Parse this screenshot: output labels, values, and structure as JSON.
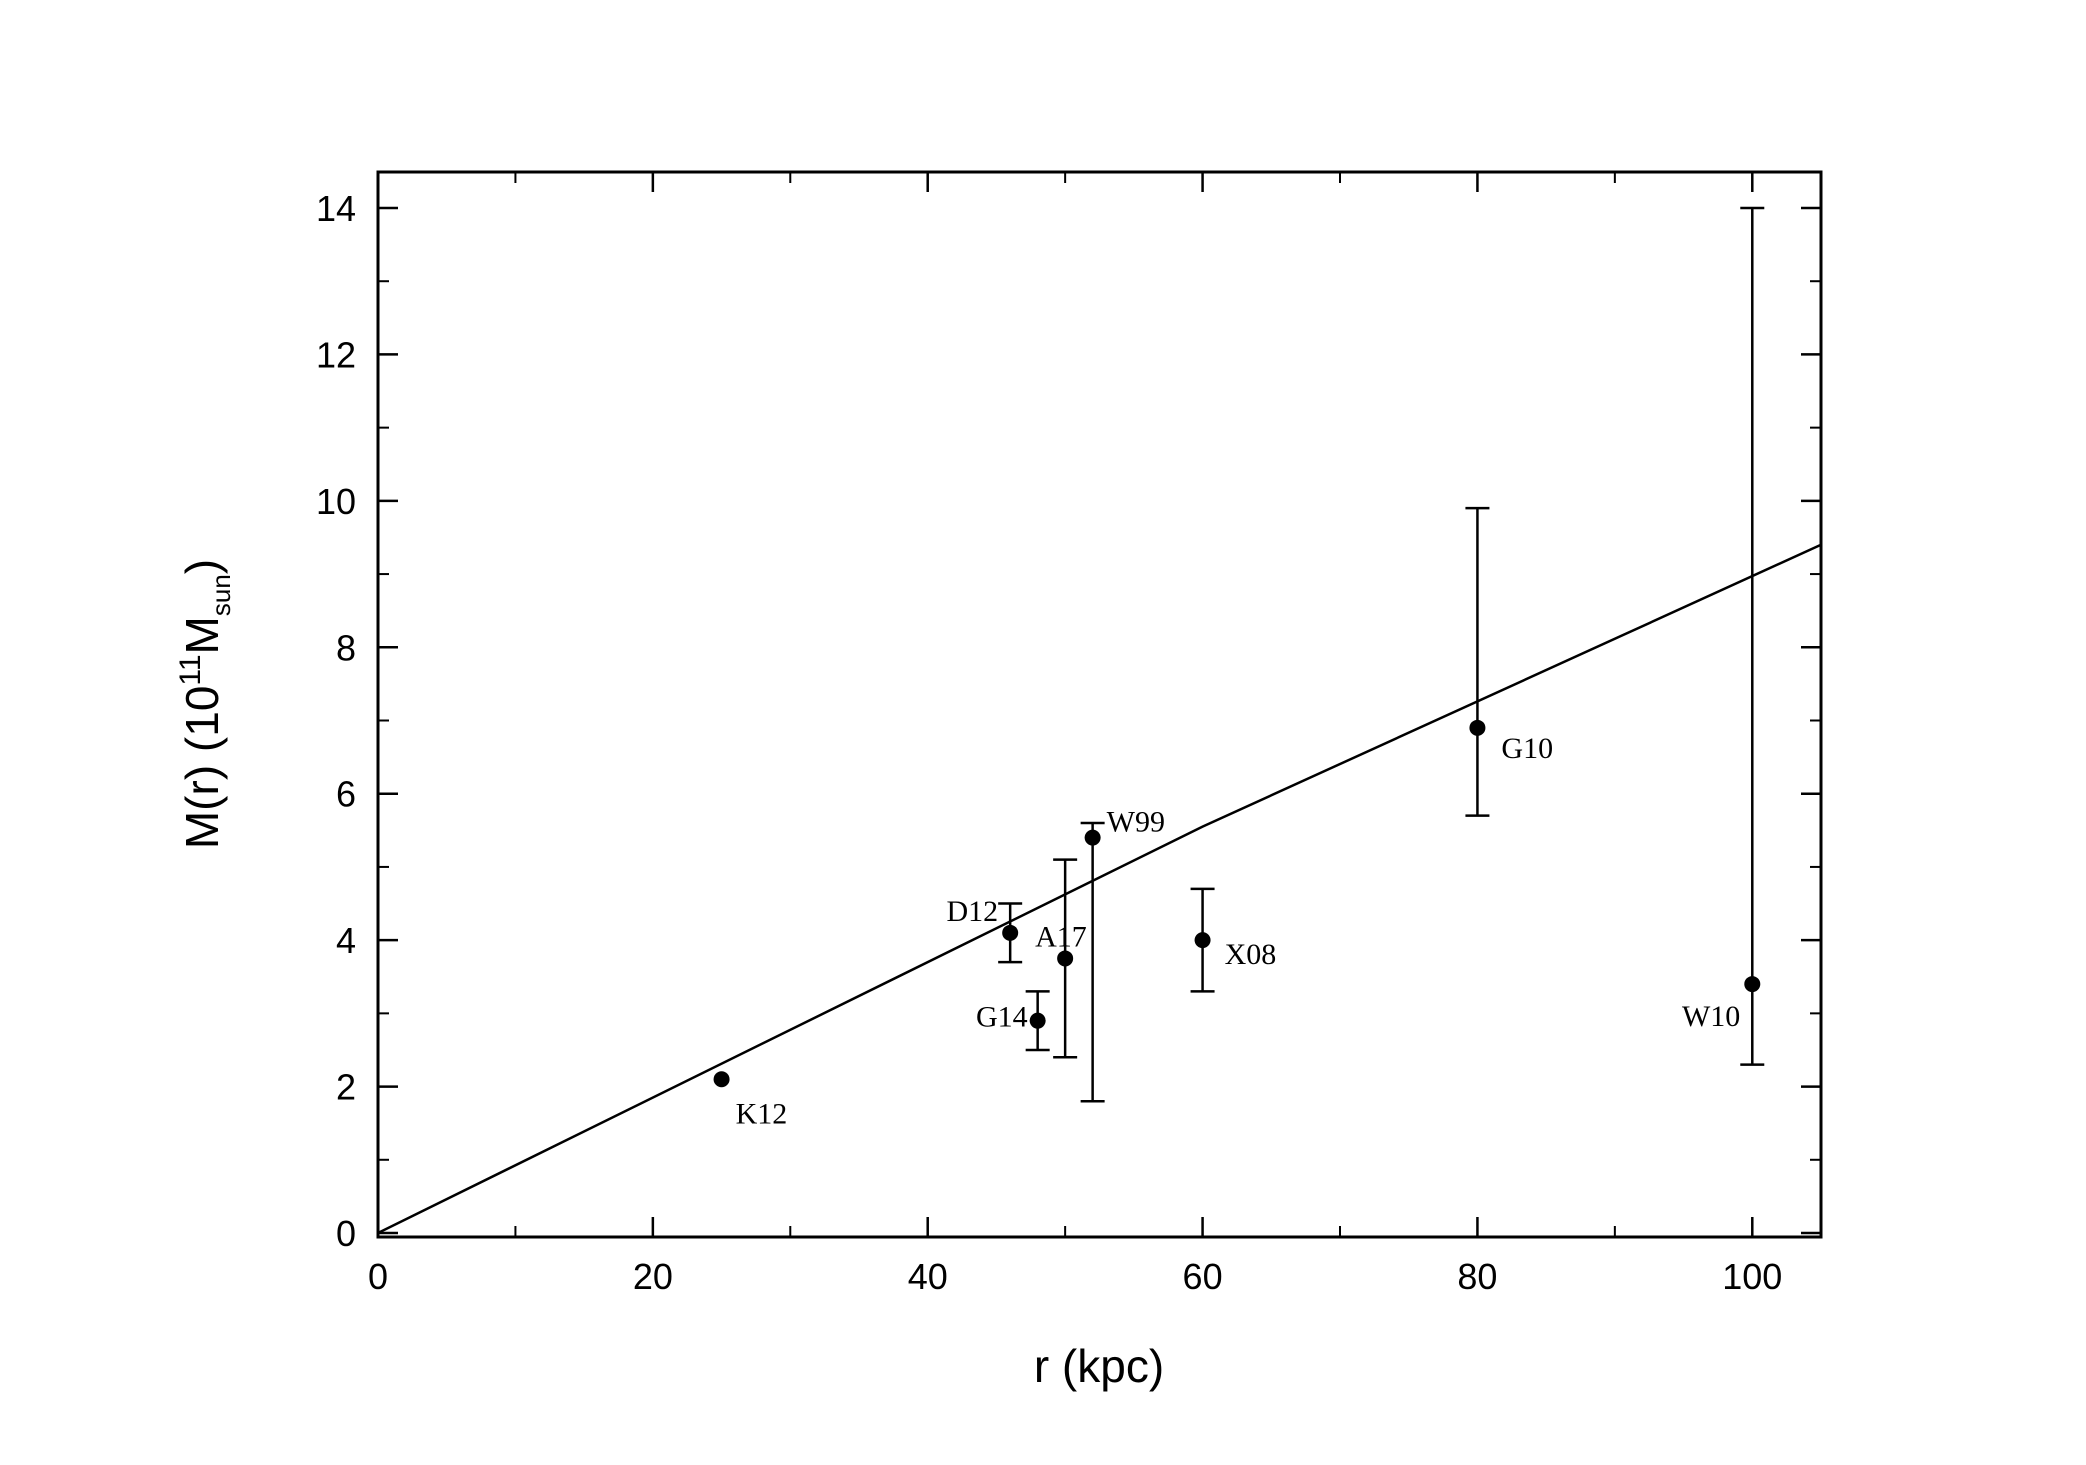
{
  "chart_data": {
    "type": "scatter",
    "title": "",
    "xlabel": "r (kpc)",
    "ylabel": {
      "main": "M(r) (10",
      "exponent": "11",
      "mass_symbol": "M",
      "mass_subscript": "sun",
      "close": ")"
    },
    "xlim": [
      0,
      105
    ],
    "ylim": [
      0,
      14.5
    ],
    "x_ticks": [
      0,
      20,
      40,
      60,
      80,
      100
    ],
    "y_ticks": [
      0,
      2,
      4,
      6,
      8,
      10,
      12,
      14
    ],
    "x_tick_labels": [
      "0",
      "20",
      "40",
      "60",
      "80",
      "100"
    ],
    "y_tick_labels": [
      "0",
      "2",
      "4",
      "6",
      "8",
      "10",
      "12",
      "14"
    ],
    "x_minor_step": 10,
    "y_minor_step": 1,
    "grid": false,
    "legend": "none",
    "points": [
      {
        "label": "K12",
        "x": 25,
        "y": 2.1,
        "yerr_low": null,
        "yerr_high": null,
        "color": "#000000"
      },
      {
        "label": "D12",
        "x": 46,
        "y": 4.1,
        "yerr_low": 3.7,
        "yerr_high": 4.5,
        "color": "#000000"
      },
      {
        "label": "G14",
        "x": 48,
        "y": 2.9,
        "yerr_low": 2.5,
        "yerr_high": 3.3,
        "color": "#000000"
      },
      {
        "label": "A17",
        "x": 50,
        "y": 3.75,
        "yerr_low": 2.4,
        "yerr_high": 5.1,
        "color": "#ff0000"
      },
      {
        "label": "W99",
        "x": 52,
        "y": 5.4,
        "yerr_low": 1.8,
        "yerr_high": 5.6,
        "color": "#000000"
      },
      {
        "label": "X08",
        "x": 60,
        "y": 4.0,
        "yerr_low": 3.3,
        "yerr_high": 4.7,
        "color": "#000000"
      },
      {
        "label": "G10",
        "x": 80,
        "y": 6.9,
        "yerr_low": 5.7,
        "yerr_high": 9.9,
        "color": "#000000"
      },
      {
        "label": "W10",
        "x": 100,
        "y": 3.4,
        "yerr_low": 2.3,
        "yerr_high": 14.0,
        "color": "#000000"
      }
    ],
    "fit_line": {
      "x": [
        0,
        60,
        105
      ],
      "y": [
        0,
        5.55,
        9.4
      ]
    }
  }
}
